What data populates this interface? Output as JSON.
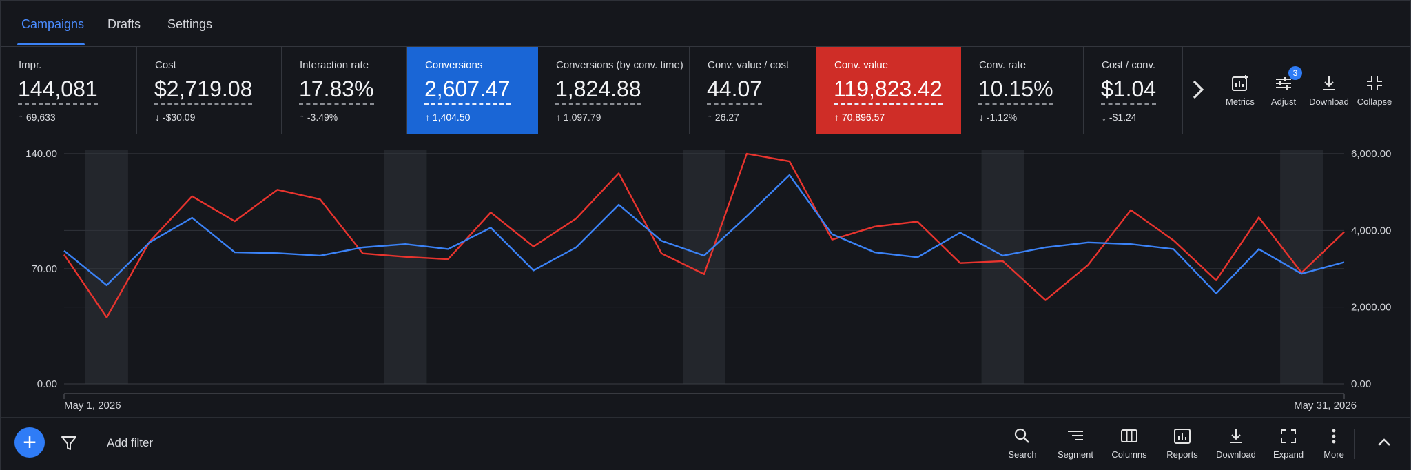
{
  "tabs": [
    {
      "label": "Campaigns",
      "active": true
    },
    {
      "label": "Drafts"
    },
    {
      "label": "Settings"
    }
  ],
  "metrics": [
    {
      "label": "Impr.",
      "value": "144,081",
      "delta": "69,633",
      "direction": "up"
    },
    {
      "label": "Cost",
      "value": "$2,719.08",
      "delta": "-$30.09",
      "direction": "down"
    },
    {
      "label": "Interaction rate",
      "value": "17.83%",
      "delta": "-3.49%",
      "direction": "up"
    },
    {
      "label": "Conversions",
      "value": "2,607.47",
      "delta": "1,404.50",
      "direction": "up",
      "highlight": "#1a66d6"
    },
    {
      "label": "Conversions (by conv. time)",
      "value": "1,824.88",
      "delta": "1,097.79",
      "direction": "up"
    },
    {
      "label": "Conv. value / cost",
      "value": "44.07",
      "delta": "26.27",
      "direction": "up"
    },
    {
      "label": "Conv. value",
      "value": "119,823.42",
      "delta": "70,896.57",
      "direction": "up",
      "highlight": "#cf2d27"
    },
    {
      "label": "Conv. rate",
      "value": "10.15%",
      "delta": "-1.12%",
      "direction": "down"
    },
    {
      "label": "Cost / conv.",
      "value": "$1.04",
      "delta": "-$1.24",
      "direction": "down"
    }
  ],
  "metric_tools": [
    {
      "label": "Metrics",
      "icon": "metrics-icon"
    },
    {
      "label": "Adjust",
      "icon": "adjust-icon",
      "badge": "3"
    },
    {
      "label": "Download",
      "icon": "download-icon"
    },
    {
      "label": "Collapse",
      "icon": "collapse-icon"
    }
  ],
  "chart_data": {
    "type": "line",
    "x_start_label": "May 1, 2026",
    "x_end_label": "May 31, 2026",
    "left_axis": {
      "ticks": [
        "140.00",
        "70.00",
        "0.00"
      ],
      "range": [
        0,
        140
      ]
    },
    "right_axis": {
      "ticks": [
        "6,000.00",
        "4,000.00",
        "2,000.00",
        "0.00"
      ],
      "range": [
        0,
        6000
      ]
    },
    "grid": true,
    "weekend_bands": [
      [
        1.5,
        2.5
      ],
      [
        8.5,
        9.5
      ],
      [
        15.5,
        16.5
      ],
      [
        22.5,
        23.5
      ],
      [
        29.5,
        30.5
      ]
    ],
    "series": [
      {
        "axis": "left",
        "color": "#3b82f6",
        "x": [
          1,
          2,
          3,
          4,
          5,
          6,
          7,
          8,
          9,
          10,
          11,
          12,
          13,
          14,
          15,
          16,
          17,
          18,
          19,
          20,
          21,
          22,
          23,
          24,
          25,
          26,
          27,
          28,
          29,
          30,
          31
        ],
        "values": [
          81,
          60,
          86,
          101,
          80,
          79.5,
          78,
          83,
          85,
          82,
          95,
          69,
          83,
          109,
          87,
          78,
          102,
          127,
          91,
          80,
          77,
          92,
          78,
          83,
          86,
          85,
          82,
          55,
          82,
          67,
          74
        ]
      },
      {
        "axis": "right",
        "color": "#e8342e",
        "x": [
          1,
          2,
          3,
          4,
          5,
          6,
          7,
          8,
          9,
          10,
          11,
          12,
          13,
          14,
          15,
          16,
          17,
          18,
          19,
          20,
          21,
          22,
          23,
          24,
          25,
          26,
          27,
          28,
          29,
          30,
          31
        ],
        "values": [
          3370,
          1730,
          3700,
          4890,
          4240,
          5060,
          4810,
          3400,
          3310,
          3250,
          4470,
          3580,
          4310,
          5490,
          3400,
          2860,
          6000,
          5800,
          3760,
          4100,
          4230,
          3150,
          3200,
          2180,
          3100,
          4530,
          3740,
          2700,
          4340,
          2900,
          3960
        ]
      }
    ]
  },
  "bottom": {
    "add_filter": "Add filter",
    "tools": [
      {
        "label": "Search",
        "icon": "search-icon"
      },
      {
        "label": "Segment",
        "icon": "segment-icon"
      },
      {
        "label": "Columns",
        "icon": "columns-icon"
      },
      {
        "label": "Reports",
        "icon": "reports-icon"
      },
      {
        "label": "Download",
        "icon": "download-icon"
      },
      {
        "label": "Expand",
        "icon": "expand-icon"
      },
      {
        "label": "More",
        "icon": "more-vert-icon"
      }
    ]
  }
}
